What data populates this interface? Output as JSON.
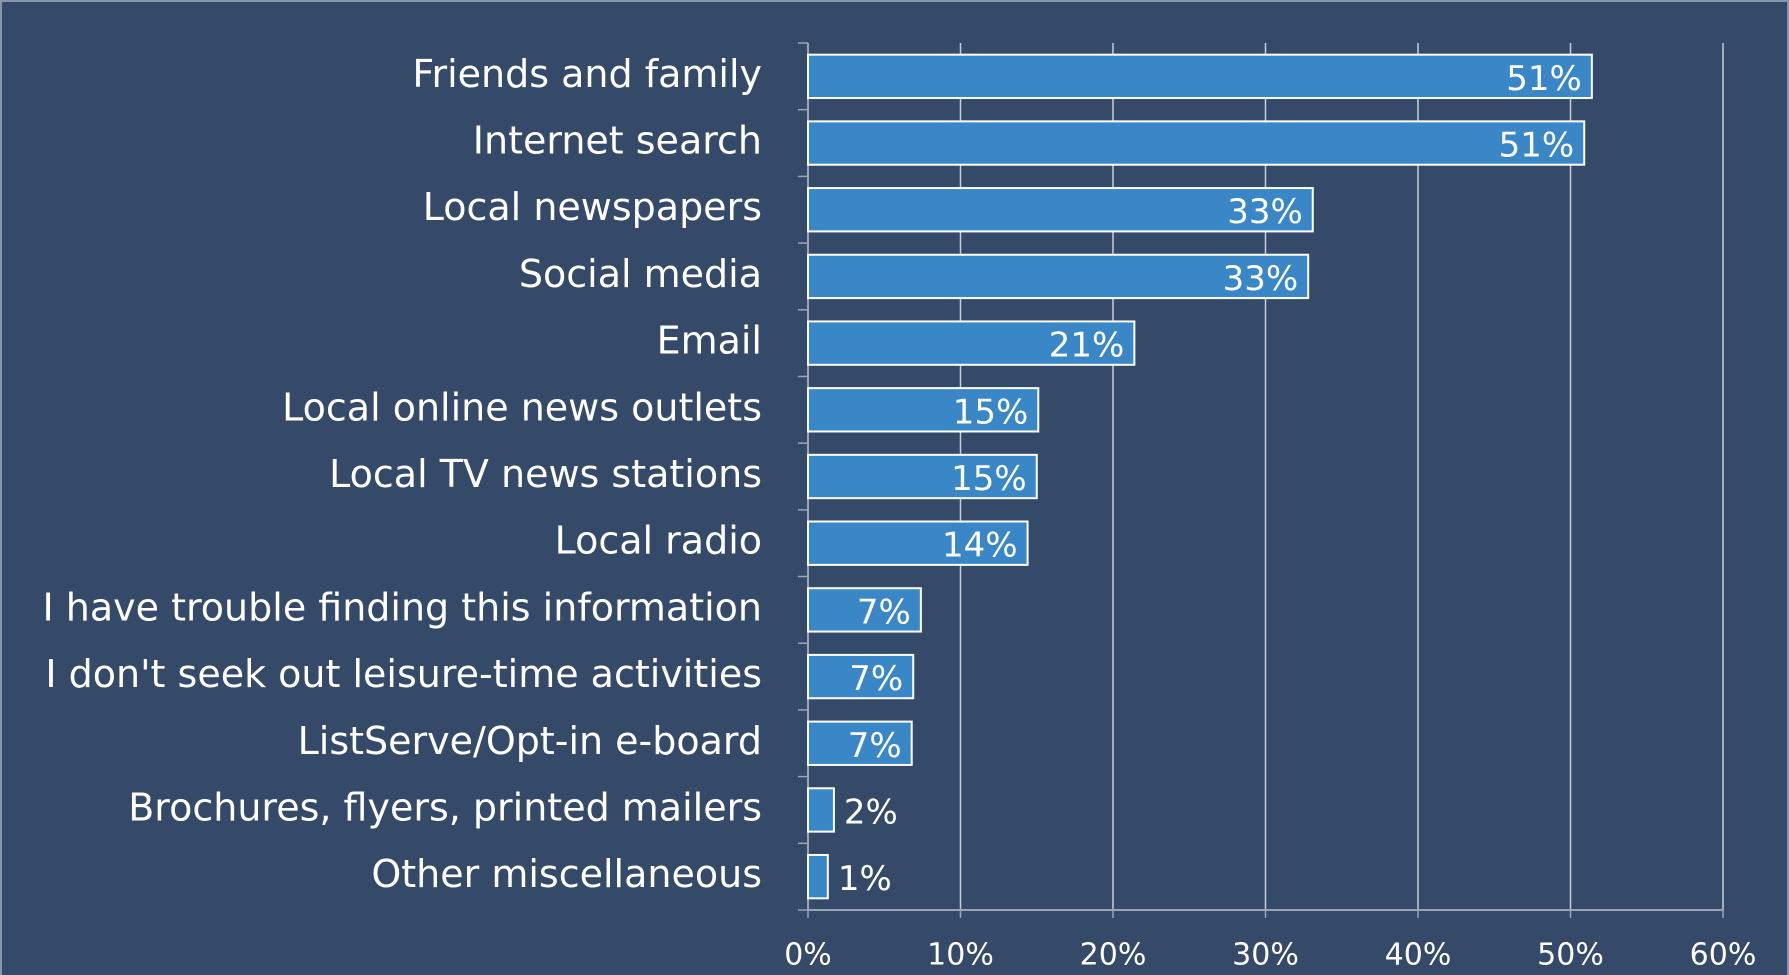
{
  "chart_data": {
    "type": "barh",
    "categories": [
      "Friends and family",
      "Internet search",
      "Local newspapers",
      "Social media",
      "Email",
      "Local online news outlets",
      "Local TV news stations",
      "Local radio",
      "I have trouble finding this information",
      "I don't seek out leisure-time activities",
      "ListServe/Opt-in e-board",
      "Brochures, flyers, printed mailers",
      "Other miscellaneous"
    ],
    "values": [
      51.4,
      50.9,
      33.1,
      32.8,
      21.4,
      15.1,
      15.0,
      14.4,
      7.4,
      6.9,
      6.8,
      1.7,
      1.3
    ],
    "value_labels": [
      "51%",
      "51%",
      "33%",
      "33%",
      "21%",
      "15%",
      "15%",
      "14%",
      "7%",
      "7%",
      "7%",
      "2%",
      "1%"
    ],
    "color": "#3a87c8",
    "xlim": [
      0,
      60
    ],
    "xticks": [
      {
        "value": 0,
        "label": "0%"
      },
      {
        "value": 10,
        "label": "10%"
      },
      {
        "value": 20,
        "label": "20%"
      },
      {
        "value": 30,
        "label": "30%"
      },
      {
        "value": 40,
        "label": "40%"
      },
      {
        "value": 50,
        "label": "50%"
      },
      {
        "value": 60,
        "label": "60%"
      }
    ],
    "grid": true
  }
}
